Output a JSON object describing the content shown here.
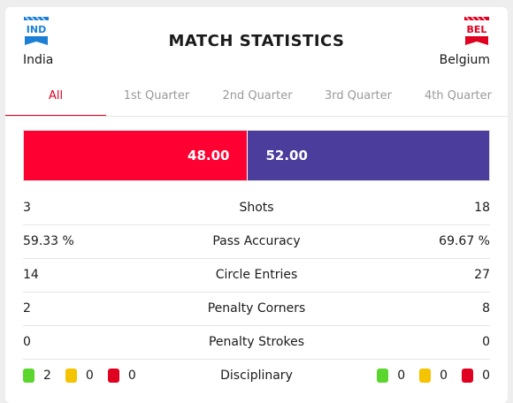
{
  "header": {
    "title": "MATCH STATISTICS",
    "home": {
      "code": "IND",
      "name": "India",
      "color": "#1b7fd6"
    },
    "away": {
      "code": "BEL",
      "name": "Belgium",
      "color": "#e0001f"
    }
  },
  "tabs": [
    "All",
    "1st Quarter",
    "2nd Quarter",
    "3rd Quarter",
    "4th Quarter"
  ],
  "active_tab": "All",
  "possession": {
    "home_value": 48.0,
    "away_value": 52.0,
    "home_label": "48.00",
    "away_label": "52.00",
    "home_color": "#ff0033",
    "away_color": "#4a3d9c"
  },
  "stats": [
    {
      "label": "Shots",
      "home": "3",
      "away": "18"
    },
    {
      "label": "Pass Accuracy",
      "home": "59.33 %",
      "away": "69.67 %"
    },
    {
      "label": "Circle Entries",
      "home": "14",
      "away": "27"
    },
    {
      "label": "Penalty Corners",
      "home": "2",
      "away": "8"
    },
    {
      "label": "Penalty Strokes",
      "home": "0",
      "away": "0"
    }
  ],
  "disciplinary": {
    "label": "Disciplinary",
    "home": {
      "green": "2",
      "yellow": "0",
      "red": "0"
    },
    "away": {
      "green": "0",
      "yellow": "0",
      "red": "0"
    }
  }
}
